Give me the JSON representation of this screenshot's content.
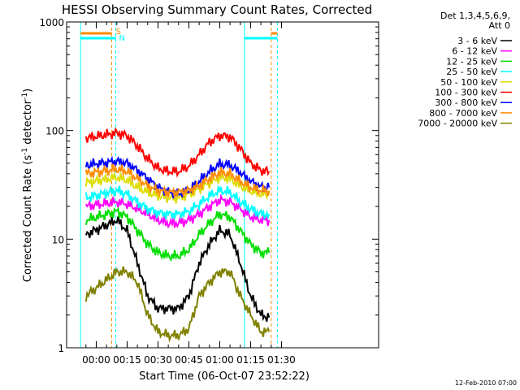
{
  "chart_data": {
    "type": "line",
    "title": "HESSI Observing Summary Count Rates, Corrected",
    "xlabel": "Start Time (06-Oct-07 23:52:22)",
    "ylabel_main": "Corrected Count Rate (s",
    "ylabel_sup1": "-1",
    "ylabel_mid": " detector",
    "ylabel_sup2": "-1",
    "ylabel_end": ")",
    "yscale": "log",
    "ylim": [
      1,
      1000
    ],
    "xlim": [
      "23:52:22",
      "01:31:00"
    ],
    "x_ticks": [
      "00:00",
      "00:15",
      "00:30",
      "00:45",
      "01:00",
      "01:15",
      "01:30"
    ],
    "y_ticks": [
      "1",
      "10",
      "100",
      "1000"
    ],
    "legend_header": [
      "Det 1,3,4,5,6,9,",
      "Att 0"
    ],
    "legend_position": "right",
    "footer_date": "12-Feb-2010 07:00",
    "markers": {
      "saa_label": "S",
      "night_label": "N",
      "night_intervals": [
        [
          "23:52:22",
          "00:09:30"
        ],
        [
          "01:12:00",
          "01:28:00"
        ]
      ],
      "saa_intervals": [
        [
          "23:52:22",
          "00:07:30"
        ],
        [
          "01:25:00",
          "01:28:00"
        ]
      ],
      "orange_dashed_lines": [
        "00:07:30",
        "01:25:00"
      ],
      "cyan_solid_lines": [
        "23:52:22",
        "01:12:00"
      ],
      "cyan_dashed_lines": [
        "00:09:30",
        "01:28:00"
      ]
    },
    "x_sample_times": [
      "23:55",
      "00:10",
      "00:15",
      "00:20",
      "00:25",
      "00:30",
      "00:35",
      "00:40",
      "00:45",
      "00:50",
      "00:55",
      "01:00",
      "01:05",
      "01:10",
      "01:15",
      "01:20",
      "01:24"
    ],
    "series": [
      {
        "name": "3 - 6 keV",
        "color": "#000000",
        "values": [
          11,
          15,
          12,
          6,
          3,
          2.3,
          2.3,
          2.3,
          3,
          6,
          9,
          12,
          11,
          6,
          3,
          2,
          1.9
        ]
      },
      {
        "name": "6 - 12 keV",
        "color": "#ff00ff",
        "values": [
          20,
          22,
          21,
          19,
          17,
          15,
          14,
          14,
          15,
          17,
          20,
          23,
          22,
          19,
          16,
          15,
          15
        ]
      },
      {
        "name": "12 - 25 keV",
        "color": "#00dd00",
        "values": [
          15,
          18,
          16,
          12,
          9,
          7.5,
          7,
          7,
          8,
          11,
          14,
          17,
          16,
          12,
          9,
          7.5,
          7.5
        ]
      },
      {
        "name": "25 - 50 keV",
        "color": "#00ffff",
        "values": [
          24,
          28,
          26,
          22,
          19,
          17.5,
          17,
          17,
          18,
          21,
          25,
          28,
          27,
          22,
          19,
          17,
          17
        ]
      },
      {
        "name": "50 - 100 keV",
        "color": "#dddd00",
        "values": [
          33,
          37,
          35,
          30,
          27,
          25,
          24,
          24,
          26,
          29,
          33,
          37,
          36,
          31,
          28,
          26,
          26
        ]
      },
      {
        "name": "100 - 300 keV",
        "color": "#ff0000",
        "values": [
          85,
          95,
          90,
          72,
          55,
          45,
          42,
          42,
          47,
          60,
          78,
          90,
          88,
          68,
          50,
          43,
          42
        ]
      },
      {
        "name": "300 - 800 keV",
        "color": "#0000ff",
        "values": [
          48,
          52,
          50,
          43,
          36,
          30,
          27,
          26,
          28,
          34,
          42,
          49,
          48,
          41,
          34,
          30,
          30
        ]
      },
      {
        "name": "800 - 7000 keV",
        "color": "#ff8c00",
        "values": [
          40,
          44,
          42,
          36,
          31,
          28,
          27,
          27,
          28,
          31,
          36,
          41,
          40,
          34,
          30,
          28,
          28
        ]
      },
      {
        "name": "7000 - 20000 keV",
        "color": "#808000",
        "values": [
          3,
          5,
          5,
          4,
          2,
          1.4,
          1.3,
          1.3,
          1.5,
          3,
          4,
          5,
          5,
          3,
          2,
          1.4,
          1.4
        ]
      }
    ]
  }
}
